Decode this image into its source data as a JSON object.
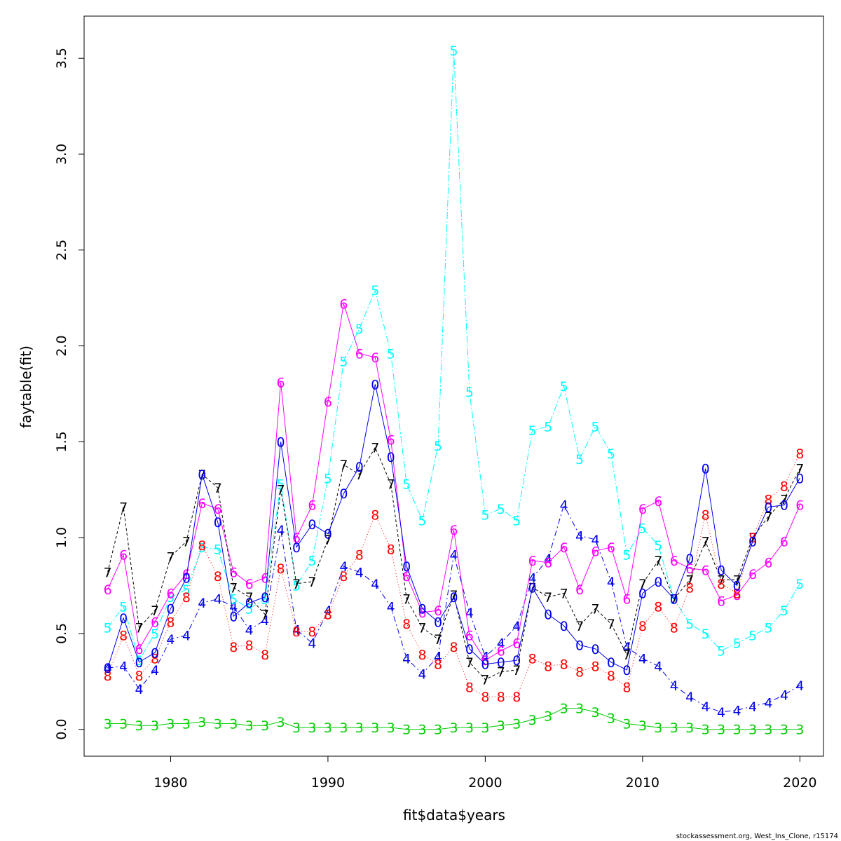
{
  "credit": "stockassessment.org, West_Ins_Clone, r15174",
  "chart_data": {
    "type": "line",
    "xlabel": "fit$data$years",
    "ylabel": "faytable(fit)",
    "xlim": [
      1974.5,
      2021.5
    ],
    "ylim": [
      -0.14,
      3.72
    ],
    "x_ticks": [
      1980,
      1990,
      2000,
      2010,
      2020
    ],
    "y_ticks": [
      0.0,
      0.5,
      1.0,
      1.5,
      2.0,
      2.5,
      3.0,
      3.5
    ],
    "x_tick_labels": [
      "1980",
      "1990",
      "2000",
      "2010",
      "2020"
    ],
    "y_tick_labels": [
      "0.0",
      "0.5",
      "1.0",
      "1.5",
      "2.0",
      "2.5",
      "3.0",
      "3.5"
    ],
    "grid": false,
    "legend": "none",
    "x": [
      1976,
      1977,
      1978,
      1979,
      1980,
      1981,
      1982,
      1983,
      1984,
      1985,
      1986,
      1987,
      1988,
      1989,
      1990,
      1991,
      1992,
      1993,
      1994,
      1995,
      1996,
      1997,
      1998,
      1999,
      2000,
      2001,
      2002,
      2003,
      2004,
      2005,
      2006,
      2007,
      2008,
      2009,
      2010,
      2011,
      2012,
      2013,
      2014,
      2015,
      2016,
      2017,
      2018,
      2019,
      2020
    ],
    "series": [
      {
        "symbol": "3",
        "color": "#00cd00",
        "dash": "none",
        "values": [
          0.03,
          0.03,
          0.02,
          0.02,
          0.03,
          0.03,
          0.04,
          0.03,
          0.03,
          0.02,
          0.02,
          0.04,
          0.01,
          0.01,
          0.01,
          0.01,
          0.01,
          0.01,
          0.01,
          0.0,
          0.0,
          0.0,
          0.01,
          0.01,
          0.01,
          0.02,
          0.03,
          0.05,
          0.07,
          0.11,
          0.11,
          0.09,
          0.06,
          0.03,
          0.02,
          0.01,
          0.01,
          0.01,
          0.0,
          0.0,
          0.0,
          0.0,
          0.0,
          0.0,
          0.0
        ]
      },
      {
        "symbol": "4",
        "color": "#0000ee",
        "dash": "8,4,2,4",
        "values": [
          0.32,
          0.33,
          0.21,
          0.31,
          0.47,
          0.49,
          0.66,
          0.68,
          0.64,
          0.52,
          0.57,
          1.04,
          0.52,
          0.45,
          0.62,
          0.85,
          0.82,
          0.76,
          0.64,
          0.37,
          0.29,
          0.38,
          0.91,
          0.61,
          0.38,
          0.45,
          0.54,
          0.79,
          0.89,
          1.17,
          1.01,
          0.99,
          0.77,
          0.43,
          0.37,
          0.33,
          0.23,
          0.17,
          0.12,
          0.09,
          0.1,
          0.12,
          0.14,
          0.18,
          0.23
        ]
      },
      {
        "symbol": "5",
        "color": "#00ffff",
        "dash": "10,3,2,3",
        "values": [
          0.53,
          0.64,
          0.36,
          0.5,
          0.69,
          0.73,
          0.95,
          0.94,
          0.68,
          0.63,
          0.68,
          1.28,
          0.75,
          0.88,
          1.31,
          1.92,
          2.09,
          2.29,
          1.96,
          1.28,
          1.09,
          1.48,
          3.54,
          1.76,
          1.12,
          1.15,
          1.09,
          1.56,
          1.58,
          1.79,
          1.41,
          1.58,
          1.44,
          0.91,
          1.05,
          0.96,
          0.68,
          0.55,
          0.5,
          0.41,
          0.45,
          0.49,
          0.53,
          0.62,
          0.76
        ]
      },
      {
        "symbol": "6",
        "color": "#ff00ff",
        "dash": "none",
        "values": [
          0.73,
          0.91,
          0.42,
          0.56,
          0.71,
          0.81,
          1.18,
          1.15,
          0.82,
          0.76,
          0.79,
          1.81,
          1.0,
          1.17,
          1.71,
          2.22,
          1.96,
          1.94,
          1.51,
          0.8,
          0.61,
          0.62,
          1.04,
          0.49,
          0.36,
          0.41,
          0.45,
          0.88,
          0.87,
          0.95,
          0.73,
          0.93,
          0.95,
          0.68,
          1.15,
          1.19,
          0.88,
          0.84,
          0.83,
          0.67,
          0.7,
          0.81,
          0.87,
          0.98,
          1.17
        ]
      },
      {
        "symbol": "7",
        "color": "#000000",
        "dash": "4,3",
        "values": [
          0.82,
          1.16,
          0.53,
          0.62,
          0.9,
          0.98,
          1.33,
          1.26,
          0.74,
          0.69,
          0.6,
          1.25,
          0.76,
          0.77,
          0.99,
          1.38,
          1.33,
          1.47,
          1.28,
          0.68,
          0.53,
          0.47,
          0.7,
          0.35,
          0.26,
          0.3,
          0.31,
          0.74,
          0.69,
          0.71,
          0.54,
          0.63,
          0.55,
          0.39,
          0.76,
          0.88,
          0.68,
          0.78,
          0.98,
          0.78,
          0.78,
          1.0,
          1.11,
          1.2,
          1.36
        ]
      },
      {
        "symbol": "8",
        "color": "#ff0000",
        "dash": "1,3",
        "values": [
          0.28,
          0.49,
          0.28,
          0.37,
          0.56,
          0.69,
          0.96,
          0.8,
          0.43,
          0.44,
          0.39,
          0.84,
          0.51,
          0.51,
          0.6,
          0.8,
          0.91,
          1.12,
          0.94,
          0.55,
          0.39,
          0.34,
          0.43,
          0.22,
          0.17,
          0.17,
          0.17,
          0.37,
          0.33,
          0.34,
          0.3,
          0.33,
          0.28,
          0.22,
          0.54,
          0.64,
          0.53,
          0.74,
          1.12,
          0.76,
          0.71,
          1.0,
          1.2,
          1.27,
          1.44
        ]
      },
      {
        "symbol": "0",
        "color": "#0000ee",
        "dash": "none",
        "values": [
          0.32,
          0.58,
          0.35,
          0.4,
          0.63,
          0.79,
          1.33,
          1.08,
          0.59,
          0.66,
          0.69,
          1.5,
          0.95,
          1.07,
          1.02,
          1.23,
          1.37,
          1.8,
          1.42,
          0.85,
          0.63,
          0.56,
          0.69,
          0.42,
          0.34,
          0.35,
          0.36,
          0.74,
          0.6,
          0.54,
          0.44,
          0.42,
          0.35,
          0.31,
          0.71,
          0.77,
          0.68,
          0.89,
          1.36,
          0.83,
          0.75,
          0.98,
          1.16,
          1.17,
          1.31
        ]
      }
    ]
  }
}
